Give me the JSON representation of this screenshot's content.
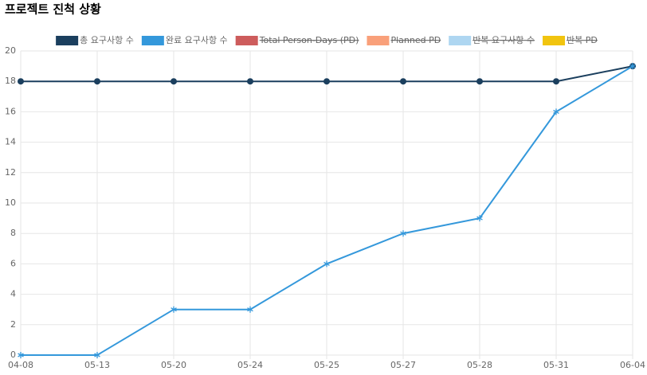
{
  "chart_data": {
    "type": "line",
    "title": "프로젝트 진척 상황",
    "categories": [
      "04-08",
      "05-13",
      "05-20",
      "05-24",
      "05-25",
      "05-27",
      "05-28",
      "05-31",
      "06-04"
    ],
    "series": [
      {
        "name": "총 요구사항 수",
        "color": "#1b3f5e",
        "marker": "circle",
        "values": [
          18,
          18,
          18,
          18,
          18,
          18,
          18,
          18,
          19
        ]
      },
      {
        "name": "완료 요구사항 수",
        "color": "#3498db",
        "marker": "star",
        "values": [
          0,
          0,
          3,
          3,
          6,
          8,
          9,
          16,
          19
        ]
      },
      {
        "name": "Total Person-Days (PD)",
        "color": "#cd5c5c",
        "hidden": true
      },
      {
        "name": "Planned PD",
        "color": "#f9a07a",
        "hidden": true
      },
      {
        "name": "반복 요구사항 수",
        "color": "#aed6f1",
        "hidden": true
      },
      {
        "name": "반복 PD",
        "color": "#f1c40f",
        "hidden": true
      }
    ],
    "ylim": [
      0,
      20
    ],
    "yticks": [
      0,
      2,
      4,
      6,
      8,
      10,
      12,
      14,
      16,
      18,
      20
    ],
    "grid": true,
    "legend": "top"
  }
}
